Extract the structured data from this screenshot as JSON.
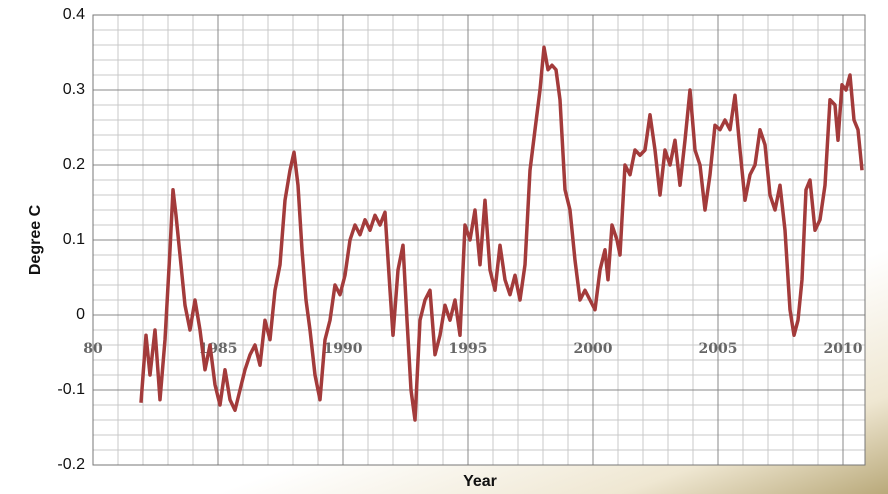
{
  "chart_data": {
    "type": "line",
    "ylabel": "Degree C",
    "xlabel": "Year",
    "xlim": [
      1980,
      2010.88
    ],
    "ylim": [
      -0.2,
      0.4
    ],
    "xticks": [
      {
        "value": 1980,
        "label": "80"
      },
      1985,
      1990,
      1995,
      2000,
      2005,
      2010
    ],
    "yticks": [
      -0.2,
      -0.1,
      0,
      0.1,
      0.2,
      0.3,
      0.4
    ],
    "grid": true,
    "minor_grid_step": {
      "x": 1,
      "y": 0.02
    },
    "series": [
      {
        "color": "#a33b3b",
        "x": [
          1981.92,
          1982.12,
          1982.28,
          1982.48,
          1982.68,
          1982.88,
          1983.08,
          1983.2,
          1983.32,
          1983.48,
          1983.68,
          1983.88,
          1984.08,
          1984.28,
          1984.48,
          1984.68,
          1984.88,
          1985.08,
          1985.28,
          1985.48,
          1985.68,
          1985.88,
          1986.08,
          1986.28,
          1986.48,
          1986.68,
          1986.88,
          1987.08,
          1987.28,
          1987.48,
          1987.68,
          1987.88,
          1988.04,
          1988.2,
          1988.36,
          1988.52,
          1988.68,
          1988.88,
          1989.08,
          1989.28,
          1989.48,
          1989.68,
          1989.88,
          1990.08,
          1990.28,
          1990.48,
          1990.68,
          1990.88,
          1991.08,
          1991.28,
          1991.48,
          1991.68,
          1991.88,
          1992.0,
          1992.2,
          1992.4,
          1992.56,
          1992.72,
          1992.88,
          1993.08,
          1993.28,
          1993.48,
          1993.68,
          1993.88,
          1994.08,
          1994.28,
          1994.48,
          1994.68,
          1994.88,
          1995.08,
          1995.28,
          1995.48,
          1995.68,
          1995.88,
          1996.08,
          1996.28,
          1996.48,
          1996.68,
          1996.88,
          1997.08,
          1997.28,
          1997.48,
          1997.68,
          1997.88,
          1998.04,
          1998.2,
          1998.36,
          1998.52,
          1998.68,
          1998.88,
          1999.08,
          1999.28,
          1999.48,
          1999.68,
          1999.88,
          2000.08,
          2000.28,
          2000.48,
          2000.6,
          2000.76,
          2000.96,
          2001.08,
          2001.28,
          2001.48,
          2001.68,
          2001.88,
          2002.08,
          2002.28,
          2002.48,
          2002.68,
          2002.88,
          2003.08,
          2003.28,
          2003.48,
          2003.68,
          2003.88,
          2004.08,
          2004.28,
          2004.48,
          2004.68,
          2004.88,
          2005.08,
          2005.28,
          2005.48,
          2005.68,
          2005.88,
          2006.08,
          2006.28,
          2006.48,
          2006.68,
          2006.88,
          2007.08,
          2007.28,
          2007.48,
          2007.68,
          2007.88,
          2008.04,
          2008.2,
          2008.36,
          2008.52,
          2008.68,
          2008.88,
          2009.08,
          2009.28,
          2009.48,
          2009.68,
          2009.8,
          2009.96,
          2010.12,
          2010.28,
          2010.44,
          2010.6,
          2010.76
        ],
        "values": [
          -0.117,
          -0.027,
          -0.08,
          -0.02,
          -0.113,
          -0.033,
          0.087,
          0.167,
          0.133,
          0.08,
          0.013,
          -0.02,
          0.02,
          -0.02,
          -0.073,
          -0.04,
          -0.093,
          -0.12,
          -0.073,
          -0.113,
          -0.127,
          -0.1,
          -0.073,
          -0.053,
          -0.04,
          -0.067,
          -0.007,
          -0.033,
          0.033,
          0.067,
          0.153,
          0.193,
          0.217,
          0.173,
          0.087,
          0.02,
          -0.02,
          -0.08,
          -0.113,
          -0.033,
          -0.007,
          0.04,
          0.027,
          0.053,
          0.1,
          0.12,
          0.107,
          0.127,
          0.113,
          0.133,
          0.12,
          0.137,
          0.033,
          -0.027,
          0.06,
          0.093,
          -0.007,
          -0.1,
          -0.14,
          -0.007,
          0.02,
          0.033,
          -0.053,
          -0.027,
          0.013,
          -0.007,
          0.02,
          -0.027,
          0.12,
          0.1,
          0.14,
          0.067,
          0.153,
          0.06,
          0.033,
          0.093,
          0.047,
          0.027,
          0.053,
          0.02,
          0.067,
          0.193,
          0.247,
          0.3,
          0.357,
          0.327,
          0.333,
          0.327,
          0.287,
          0.167,
          0.14,
          0.073,
          0.02,
          0.033,
          0.02,
          0.007,
          0.06,
          0.087,
          0.047,
          0.12,
          0.1,
          0.08,
          0.2,
          0.187,
          0.22,
          0.213,
          0.22,
          0.267,
          0.22,
          0.16,
          0.22,
          0.2,
          0.233,
          0.173,
          0.233,
          0.3,
          0.22,
          0.2,
          0.14,
          0.187,
          0.253,
          0.247,
          0.26,
          0.247,
          0.293,
          0.22,
          0.153,
          0.187,
          0.2,
          0.247,
          0.227,
          0.16,
          0.14,
          0.173,
          0.113,
          0.007,
          -0.027,
          -0.007,
          0.047,
          0.167,
          0.18,
          0.113,
          0.127,
          0.173,
          0.287,
          0.28,
          0.233,
          0.307,
          0.3,
          0.32,
          0.26,
          0.247,
          0.193
        ]
      }
    ]
  }
}
